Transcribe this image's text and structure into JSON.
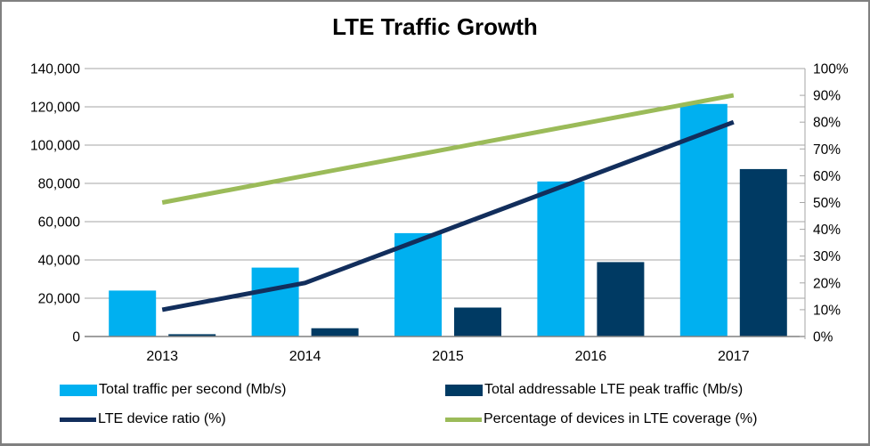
{
  "title": "LTE Traffic Growth",
  "chart_data": {
    "type": "bar",
    "subtype": "combo-bar-line-dual-axis",
    "title": "LTE Traffic Growth",
    "categories": [
      "2013",
      "2014",
      "2015",
      "2016",
      "2017"
    ],
    "series": [
      {
        "name": "Total traffic per second (Mb/s)",
        "kind": "bar",
        "axis": "left",
        "color": "#00B0F0",
        "values": [
          24000,
          36000,
          54000,
          81000,
          121500
        ]
      },
      {
        "name": "Total addressable LTE peak traffic (Mb/s)",
        "kind": "bar",
        "axis": "left",
        "color": "#003A63",
        "values": [
          1200,
          4320,
          15120,
          38880,
          87480
        ]
      },
      {
        "name": "LTE device ratio (%)",
        "kind": "line",
        "axis": "right",
        "color": "#122E5C",
        "values": [
          10,
          20,
          40,
          60,
          80
        ]
      },
      {
        "name": "Percentage of devices in LTE coverage (%)",
        "kind": "line",
        "axis": "right",
        "color": "#9BBB59",
        "values": [
          50,
          60,
          70,
          80,
          90
        ]
      }
    ],
    "left_axis": {
      "min": 0,
      "max": 140000,
      "step": 20000,
      "tick_labels": [
        "0",
        "20,000",
        "40,000",
        "60,000",
        "80,000",
        "100,000",
        "120,000",
        "140,000"
      ]
    },
    "right_axis": {
      "min": 0,
      "max": 100,
      "step": 10,
      "tick_labels": [
        "0%",
        "10%",
        "20%",
        "30%",
        "40%",
        "50%",
        "60%",
        "70%",
        "80%",
        "90%",
        "100%"
      ]
    },
    "grid": true,
    "legend_position": "bottom"
  },
  "colors": {
    "gridline": "#A6A6A6",
    "axis_line": "#808080",
    "frame_border": "#808080",
    "text": "#000000",
    "background": "#FFFFFF"
  }
}
